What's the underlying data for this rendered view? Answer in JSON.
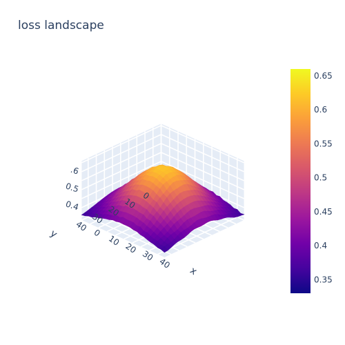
{
  "chart_data": {
    "type": "surface",
    "title": "loss landscape",
    "x_axis": {
      "label": "x",
      "range": [
        0,
        49
      ],
      "ticks": [
        0,
        10,
        20,
        30,
        40
      ]
    },
    "y_axis": {
      "label": "y",
      "range": [
        0,
        49
      ],
      "ticks": [
        0,
        10,
        20,
        30,
        40
      ]
    },
    "z_axis": {
      "label": "",
      "range": [
        0.33,
        0.66
      ],
      "ticks": [
        0.4,
        0.5,
        0.6
      ],
      "tick_labels": [
        "0.4",
        "0.5",
        ".6"
      ]
    },
    "colorbar": {
      "range": [
        0.33,
        0.66
      ],
      "ticks": [
        0.35,
        0.4,
        0.45,
        0.5,
        0.55,
        0.6,
        0.65
      ],
      "tick_labels": [
        "0.35",
        "0.4",
        "0.45",
        "0.5",
        "0.55",
        "0.6",
        "0.65"
      ]
    },
    "colorscale": [
      "#0d0887",
      "#46039f",
      "#7201a8",
      "#9c179e",
      "#bd3786",
      "#d8576b",
      "#ed7953",
      "#fb9f3a",
      "#fdca26",
      "#f0f921"
    ],
    "grid": true,
    "background": "#e5ecf6",
    "corner_values": 0.34,
    "peak_value": 0.62
  }
}
